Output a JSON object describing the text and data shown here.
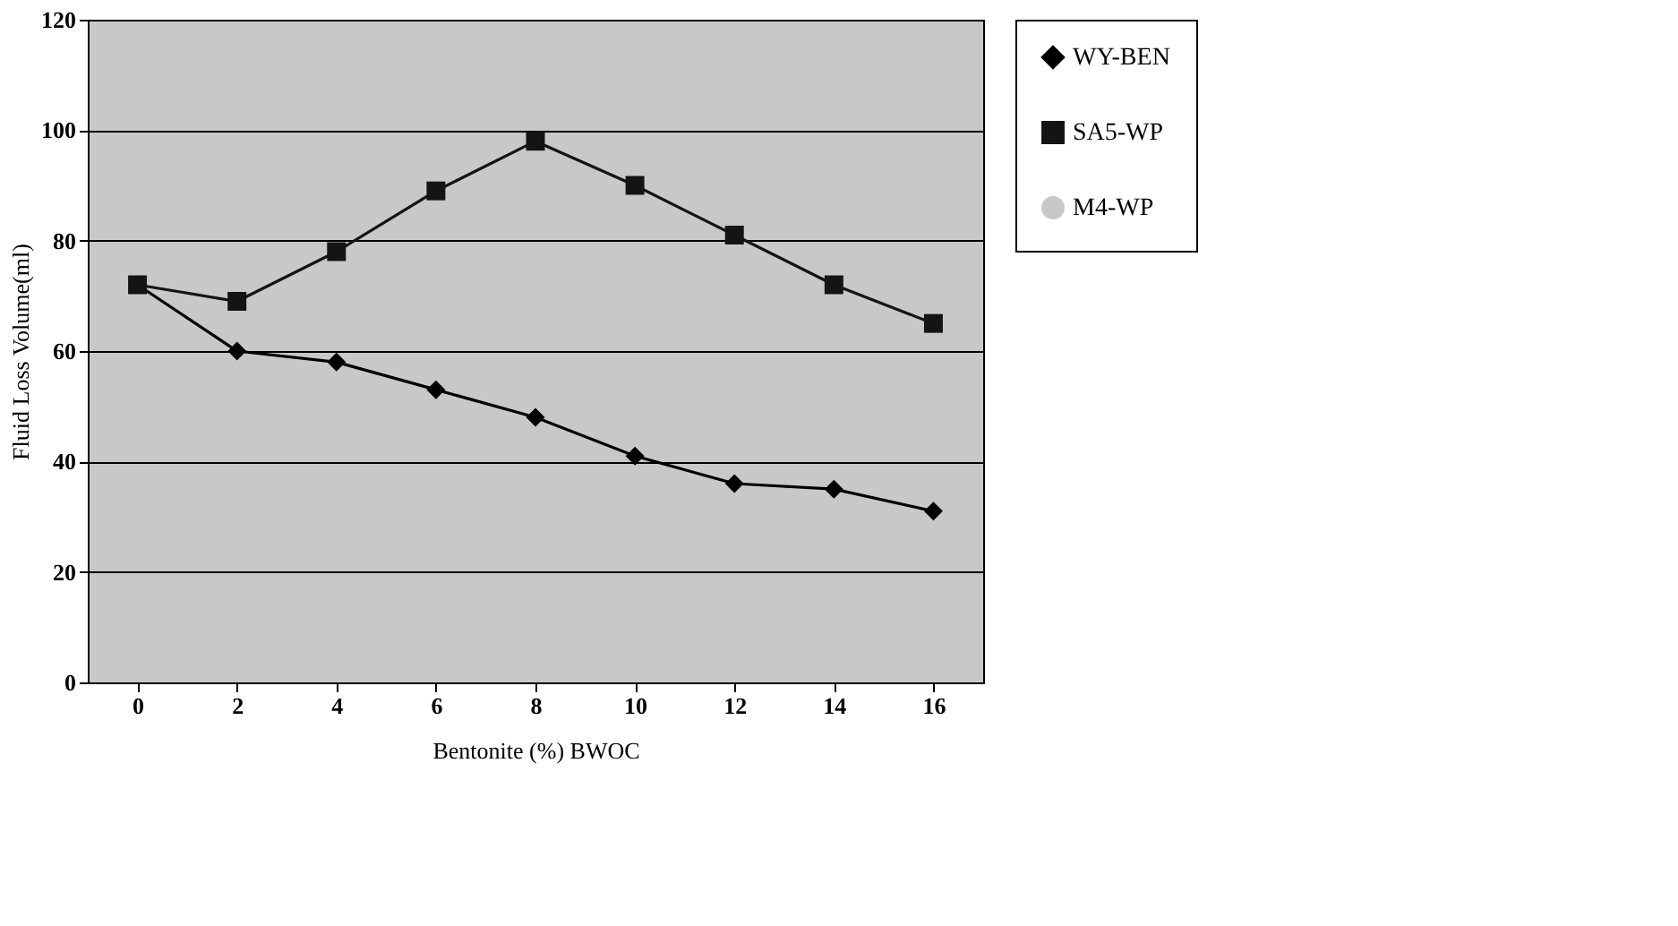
{
  "chart_data": {
    "type": "line",
    "xlabel": "Bentonite (%) BWOC",
    "ylabel": "Fluid Loss Volume(ml)",
    "categories": [
      "0",
      "2",
      "4",
      "6",
      "8",
      "10",
      "12",
      "14",
      "16"
    ],
    "series": [
      {
        "name": "WY-BEN",
        "color": "#000000",
        "marker": "diamond",
        "values": [
          72,
          60,
          58,
          53,
          48,
          41,
          36,
          35,
          31
        ]
      },
      {
        "name": "SA5-WP",
        "color": "#141414",
        "marker": "square",
        "values": [
          72,
          69,
          78,
          89,
          98,
          90,
          81,
          72,
          65
        ]
      },
      {
        "name": "M4-WP",
        "color": "#c8c8c8",
        "marker": "none",
        "values": [
          null,
          null,
          null,
          null,
          null,
          null,
          null,
          null,
          null
        ]
      }
    ],
    "ylim": [
      0,
      120
    ],
    "yticks": [
      0,
      20,
      40,
      60,
      80,
      100,
      120
    ],
    "grid": "y",
    "legend": "right",
    "line_style": "solid"
  }
}
